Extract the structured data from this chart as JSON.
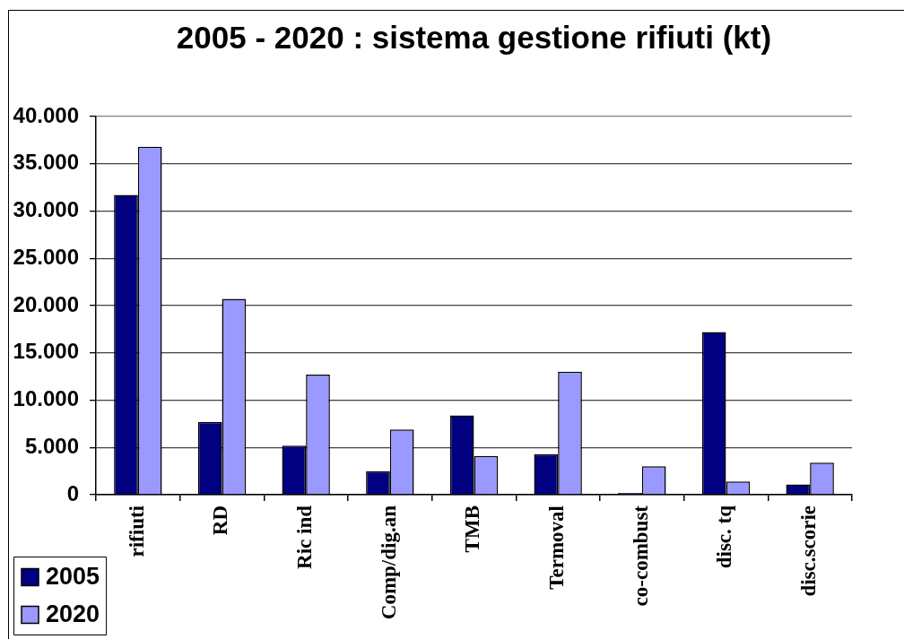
{
  "chart_data": {
    "type": "bar",
    "title": "2005 - 2020 : sistema gestione rifiuti (kt)",
    "categories": [
      "rifiuti",
      "RD",
      "Ric ind",
      "Comp/dig.an",
      "TMB",
      "Termoval",
      "co-combust",
      "disc. tq",
      "disc.scorie"
    ],
    "series": [
      {
        "name": "2005",
        "color": "#000080",
        "values": [
          31700,
          7700,
          5200,
          2500,
          8400,
          4300,
          200,
          17200,
          1100
        ]
      },
      {
        "name": "2020",
        "color": "#9999ff",
        "values": [
          36800,
          20700,
          12700,
          6900,
          4100,
          13000,
          3000,
          1400,
          3400
        ]
      }
    ],
    "ylim": [
      0,
      40000
    ],
    "yticks": [
      0,
      {
        "value": 5000,
        "label": "5.000"
      },
      {
        "value": 10000,
        "label": "10.000"
      },
      {
        "value": 15000,
        "label": "15.000"
      },
      {
        "value": 20000,
        "label": "20.000"
      },
      {
        "value": 25000,
        "label": "25.000"
      },
      {
        "value": 30000,
        "label": "30.000"
      },
      {
        "value": 35000,
        "label": "35.000"
      },
      {
        "value": 40000,
        "label": "40.000"
      }
    ],
    "grid": "y",
    "legend": "bottom left"
  }
}
